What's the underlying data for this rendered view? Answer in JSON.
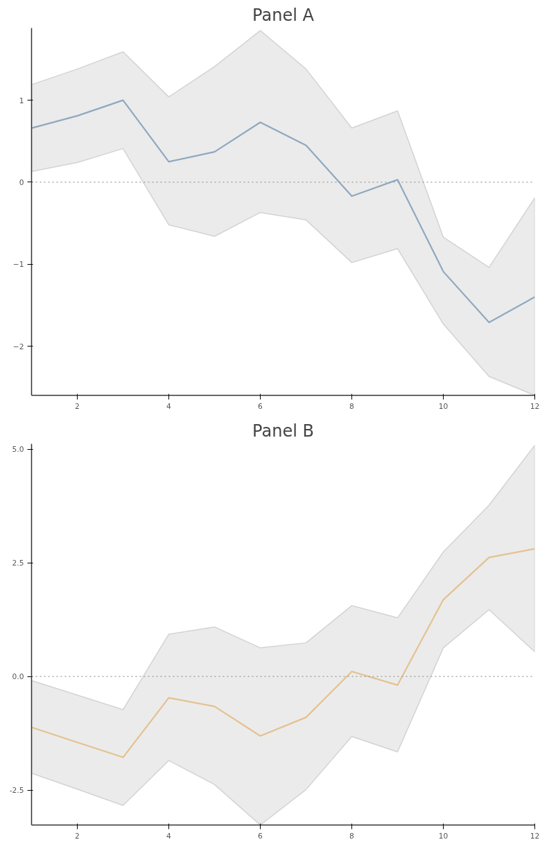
{
  "chart_data": [
    {
      "type": "line",
      "title": "Panel A",
      "x": [
        1,
        2,
        3,
        4,
        5,
        6,
        7,
        8,
        9,
        10,
        11,
        12
      ],
      "series": [
        {
          "color": "#8fa8bf",
          "values": [
            0.66,
            0.81,
            1.0,
            0.25,
            0.37,
            0.73,
            0.45,
            -0.17,
            0.03,
            -1.09,
            -1.71,
            -1.4
          ],
          "lower": [
            0.13,
            0.24,
            0.41,
            -0.52,
            -0.66,
            -0.37,
            -0.46,
            -0.98,
            -0.81,
            -1.73,
            -2.37,
            -2.6
          ],
          "upper": [
            1.19,
            1.38,
            1.59,
            1.04,
            1.41,
            1.85,
            1.38,
            0.66,
            0.87,
            -0.67,
            -1.04,
            -0.19
          ]
        }
      ],
      "xlim": [
        1,
        12
      ],
      "xticks": [
        2,
        4,
        6,
        8,
        10,
        12
      ],
      "ylim": [
        -2.6,
        1.88
      ],
      "yticks": [
        -2,
        -1,
        0,
        1
      ],
      "ref_lines": [
        {
          "axis": "y",
          "value": 0,
          "line_style": "dotted",
          "color": "#999999"
        }
      ],
      "grid": false,
      "line_style": "solid",
      "marker": "none"
    },
    {
      "type": "line",
      "title": "Panel B",
      "x": [
        1,
        2,
        3,
        4,
        5,
        6,
        7,
        8,
        9,
        10,
        11,
        12
      ],
      "series": [
        {
          "color": "#e5c18f",
          "values": [
            -1.12,
            -1.45,
            -1.78,
            -0.47,
            -0.66,
            -1.31,
            -0.9,
            0.11,
            -0.19,
            1.69,
            2.62,
            2.81
          ],
          "lower": [
            -2.13,
            -2.48,
            -2.84,
            -1.85,
            -2.38,
            -3.27,
            -2.49,
            -1.32,
            -1.66,
            0.63,
            1.47,
            0.54
          ],
          "upper": [
            -0.09,
            -0.41,
            -0.73,
            0.93,
            1.09,
            0.63,
            0.74,
            1.56,
            1.29,
            2.74,
            3.77,
            5.09
          ]
        }
      ],
      "xlim": [
        1,
        12
      ],
      "xticks": [
        2,
        4,
        6,
        8,
        10,
        12
      ],
      "ylim": [
        -3.27,
        5.12
      ],
      "yticks": [
        {
          "value": -2.5,
          "label": "-2.5"
        },
        {
          "value": 0,
          "label": "0.0"
        },
        {
          "value": 2.5,
          "label": "2.5"
        },
        {
          "value": 5,
          "label": "5.0"
        }
      ],
      "ref_lines": [
        {
          "axis": "y",
          "value": 0,
          "line_style": "dotted",
          "color": "#999999"
        }
      ],
      "grid": false,
      "line_style": "solid",
      "marker": "none"
    }
  ]
}
